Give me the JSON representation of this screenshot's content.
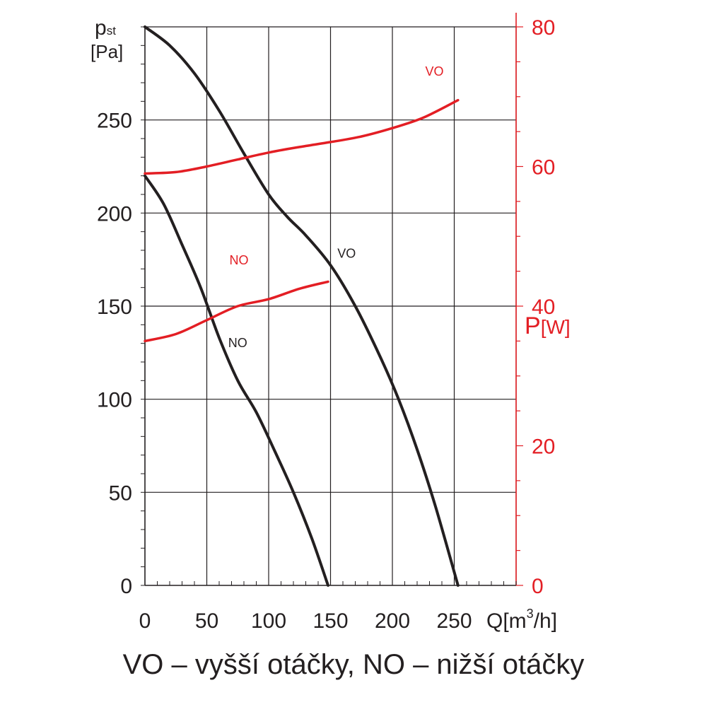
{
  "chart_data": {
    "type": "line",
    "x_axis": {
      "label_main": "Q[m",
      "label_sup": "3",
      "label_end": "/h]",
      "range": [
        0,
        300
      ],
      "ticks": [
        0,
        50,
        100,
        150,
        200,
        250
      ]
    },
    "y_axis_left": {
      "label_symbol": "p",
      "label_sub": "st",
      "label_unit": "[Pa]",
      "range": [
        0,
        300
      ],
      "ticks": [
        0,
        50,
        100,
        150,
        200,
        250
      ]
    },
    "y_axis_right": {
      "label_symbol": "P",
      "label_unit": "[W]",
      "range": [
        0,
        80
      ],
      "ticks": [
        0,
        20,
        40,
        60,
        80
      ],
      "color": "#e31e24"
    },
    "grid": true,
    "series": [
      {
        "name": "VO",
        "axis": "left",
        "color": "#231f20",
        "x": [
          0,
          20,
          40,
          60,
          80,
          100,
          115,
          130,
          150,
          170,
          190,
          205,
          220,
          235,
          253
        ],
        "y": [
          300,
          290,
          275,
          255,
          232,
          210,
          198,
          188,
          172,
          150,
          123,
          100,
          73,
          42,
          0
        ]
      },
      {
        "name": "NO",
        "axis": "left",
        "color": "#231f20",
        "x": [
          0,
          15,
          30,
          45,
          60,
          75,
          90,
          105,
          120,
          135,
          148
        ],
        "y": [
          220,
          205,
          183,
          160,
          133,
          110,
          93,
          72,
          50,
          25,
          0
        ]
      },
      {
        "name": "VO",
        "axis": "right",
        "color": "#e31e24",
        "x": [
          0,
          25,
          50,
          75,
          100,
          125,
          150,
          175,
          200,
          225,
          253
        ],
        "y": [
          59,
          59.2,
          60,
          61,
          62,
          62.8,
          63.5,
          64.3,
          65.5,
          67,
          69.5
        ]
      },
      {
        "name": "NO",
        "axis": "right",
        "color": "#e31e24",
        "x": [
          0,
          25,
          50,
          75,
          100,
          125,
          148
        ],
        "y": [
          35,
          36,
          38,
          40,
          41,
          42.5,
          43.5
        ]
      }
    ],
    "annotations": [
      {
        "text": "VO",
        "axis": "left",
        "x": 163,
        "y": 176,
        "color": "#231f20"
      },
      {
        "text": "NO",
        "axis": "left",
        "x": 75,
        "y": 128,
        "color": "#231f20"
      },
      {
        "text": "VO",
        "axis": "right",
        "x": 234,
        "y": 73,
        "color": "#e31e24"
      },
      {
        "text": "NO",
        "axis": "right",
        "x": 76,
        "y": 46,
        "color": "#e31e24"
      }
    ],
    "caption": "VO – vyšší otáčky, NO – nižší otáčky"
  }
}
